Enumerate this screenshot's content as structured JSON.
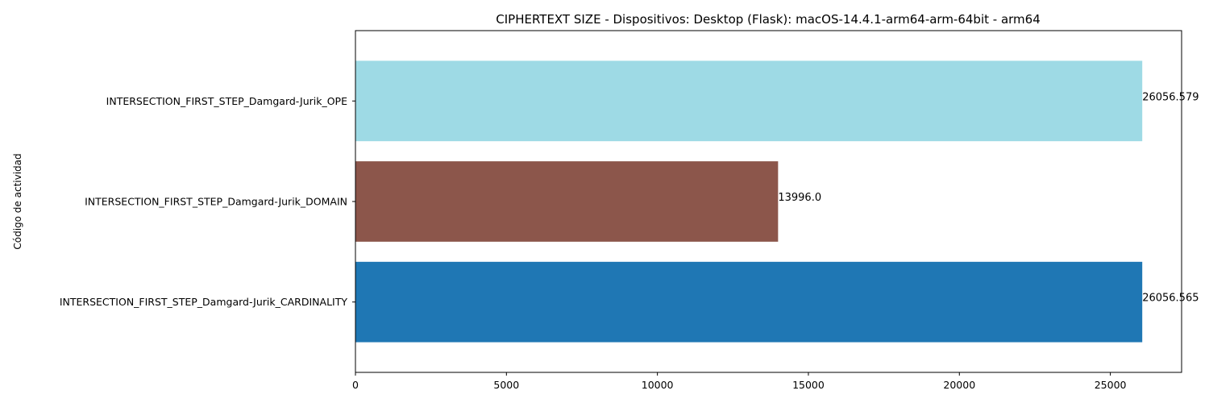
{
  "chart_data": {
    "type": "bar",
    "orientation": "horizontal",
    "title": "CIPHERTEXT SIZE - Dispositivos: Desktop (Flask): macOS-14.4.1-arm64-arm-64bit - arm64",
    "xlabel": "",
    "ylabel": "Código de actividad",
    "xlim": [
      0,
      27359.4
    ],
    "xticks": [
      0,
      5000,
      10000,
      15000,
      20000,
      25000
    ],
    "grid": false,
    "legend": "none",
    "categories": [
      "INTERSECTION_FIRST_STEP_Damgard-Jurik_CARDINALITY",
      "INTERSECTION_FIRST_STEP_Damgard-Jurik_DOMAIN",
      "INTERSECTION_FIRST_STEP_Damgard-Jurik_OPE"
    ],
    "values": [
      26056.565,
      13996.0,
      26056.579
    ],
    "value_labels": [
      "26056.565",
      "13996.0",
      "26056.579"
    ],
    "colors": [
      "#1f77b4",
      "#8c564b",
      "#9edae5"
    ]
  }
}
